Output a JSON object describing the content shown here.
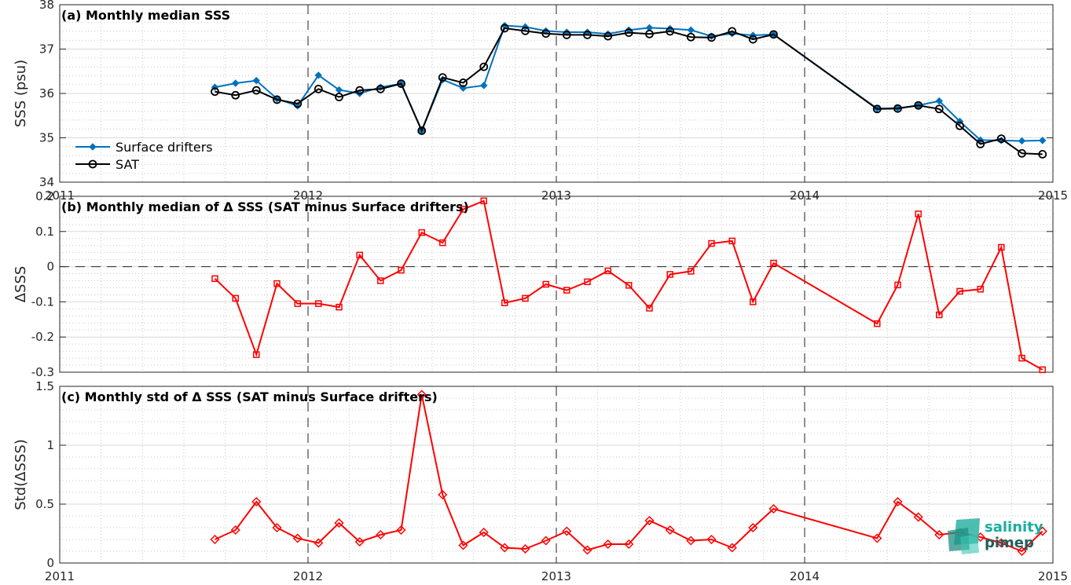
{
  "chart_data": [
    {
      "type": "line",
      "title": "(a) Monthly median SSS",
      "ylabel": "SSS (psu)",
      "ylim": [
        34,
        38
      ],
      "yticks": [
        "34",
        "35",
        "36",
        "37",
        "38"
      ],
      "xlim": [
        2011,
        2015
      ],
      "xticks": [
        "2011",
        "2012",
        "2013",
        "2014",
        "2015"
      ],
      "grid": true,
      "legend_position": "bottom-left",
      "series": [
        {
          "name": "Surface drifters",
          "color": "#0072BD",
          "marker": "diamond-filled",
          "x": [
            2011.625,
            2011.708,
            2011.792,
            2011.875,
            2011.958,
            2012.042,
            2012.125,
            2012.208,
            2012.292,
            2012.375,
            2012.458,
            2012.542,
            2012.625,
            2012.708,
            2012.792,
            2012.875,
            2012.958,
            2013.042,
            2013.125,
            2013.208,
            2013.292,
            2013.375,
            2013.458,
            2013.542,
            2013.625,
            2013.708,
            2013.792,
            2013.875,
            2014.292,
            2014.375,
            2014.458,
            2014.542,
            2014.625,
            2014.708,
            2014.792,
            2014.875,
            2014.958
          ],
          "y": [
            36.14,
            36.23,
            36.29,
            35.88,
            35.72,
            36.41,
            36.08,
            36.0,
            36.14,
            36.22,
            35.16,
            36.31,
            36.12,
            36.18,
            37.53,
            37.5,
            37.41,
            37.38,
            37.38,
            37.34,
            37.43,
            37.48,
            37.46,
            37.43,
            37.29,
            37.35,
            37.31,
            37.33,
            35.66,
            35.67,
            35.73,
            35.83,
            35.37,
            34.95,
            34.94,
            34.93,
            34.94
          ]
        },
        {
          "name": "SAT",
          "color": "#000000",
          "marker": "circle-open",
          "x": [
            2011.625,
            2011.708,
            2011.792,
            2011.875,
            2011.958,
            2012.042,
            2012.125,
            2012.208,
            2012.292,
            2012.375,
            2012.458,
            2012.542,
            2012.625,
            2012.708,
            2012.792,
            2012.875,
            2012.958,
            2013.042,
            2013.125,
            2013.208,
            2013.292,
            2013.375,
            2013.458,
            2013.542,
            2013.625,
            2013.708,
            2013.792,
            2013.875,
            2014.292,
            2014.375,
            2014.458,
            2014.542,
            2014.625,
            2014.708,
            2014.792,
            2014.875,
            2014.958
          ],
          "y": [
            36.04,
            35.96,
            36.07,
            35.86,
            35.77,
            36.1,
            35.92,
            36.07,
            36.1,
            36.22,
            35.16,
            36.36,
            36.24,
            36.6,
            37.47,
            37.41,
            37.35,
            37.32,
            37.32,
            37.29,
            37.37,
            37.34,
            37.4,
            37.27,
            37.26,
            37.4,
            37.22,
            37.33,
            35.65,
            35.66,
            35.73,
            35.65,
            35.27,
            34.86,
            34.98,
            34.65,
            34.63
          ]
        }
      ]
    },
    {
      "type": "line",
      "title": "(b) Monthly median of Δ SSS (SAT minus Surface drifters)",
      "ylabel": "ΔSSS",
      "ylim": [
        -0.3,
        0.2
      ],
      "yticks": [
        "-0.3",
        "-0.2",
        "-0.1",
        "0",
        "0.1",
        "0.2"
      ],
      "xlim": [
        2011,
        2015
      ],
      "grid": true,
      "zero_line": "dashed",
      "series": [
        {
          "color": "#FF0000",
          "marker": "square-open",
          "x": [
            2011.625,
            2011.708,
            2011.792,
            2011.875,
            2011.958,
            2012.042,
            2012.125,
            2012.208,
            2012.292,
            2012.375,
            2012.458,
            2012.542,
            2012.625,
            2012.708,
            2012.792,
            2012.875,
            2012.958,
            2013.042,
            2013.125,
            2013.208,
            2013.292,
            2013.375,
            2013.458,
            2013.542,
            2013.625,
            2013.708,
            2013.792,
            2013.875,
            2014.292,
            2014.375,
            2014.458,
            2014.542,
            2014.625,
            2014.708,
            2014.792,
            2014.875,
            2014.958
          ],
          "y": [
            -0.034,
            -0.09,
            -0.25,
            -0.048,
            -0.105,
            -0.105,
            -0.115,
            0.033,
            -0.04,
            -0.01,
            0.097,
            0.068,
            0.163,
            0.187,
            -0.103,
            -0.09,
            -0.05,
            -0.067,
            -0.043,
            -0.012,
            -0.053,
            -0.118,
            -0.022,
            -0.013,
            0.066,
            0.073,
            -0.1,
            0.01,
            -0.162,
            -0.052,
            0.15,
            -0.137,
            -0.07,
            -0.064,
            0.055,
            -0.26,
            -0.293
          ]
        }
      ]
    },
    {
      "type": "line",
      "title": "(c) Monthly std of Δ SSS (SAT minus Surface drifters)",
      "ylabel": "Std(ΔSSS)",
      "ylim": [
        0,
        1.5
      ],
      "yticks": [
        "0",
        "0.5",
        "1",
        "1.5"
      ],
      "xlim": [
        2011,
        2015
      ],
      "xticks": [
        "2011",
        "2012",
        "2013",
        "2014",
        "2015"
      ],
      "grid": true,
      "series": [
        {
          "color": "#FF0000",
          "marker": "diamond-open",
          "x": [
            2011.625,
            2011.708,
            2011.792,
            2011.875,
            2011.958,
            2012.042,
            2012.125,
            2012.208,
            2012.292,
            2012.375,
            2012.458,
            2012.542,
            2012.625,
            2012.708,
            2012.792,
            2012.875,
            2012.958,
            2013.042,
            2013.125,
            2013.208,
            2013.292,
            2013.375,
            2013.458,
            2013.542,
            2013.625,
            2013.708,
            2013.792,
            2013.875,
            2014.292,
            2014.375,
            2014.458,
            2014.542,
            2014.625,
            2014.708,
            2014.792,
            2014.875,
            2014.958
          ],
          "y": [
            0.2,
            0.28,
            0.52,
            0.3,
            0.21,
            0.17,
            0.34,
            0.18,
            0.24,
            0.28,
            1.43,
            0.58,
            0.15,
            0.26,
            0.13,
            0.12,
            0.19,
            0.27,
            0.11,
            0.16,
            0.16,
            0.36,
            0.28,
            0.19,
            0.2,
            0.13,
            0.3,
            0.46,
            0.21,
            0.52,
            0.39,
            0.24,
            0.26,
            0.22,
            0.17,
            0.1,
            0.27
          ]
        }
      ]
    }
  ],
  "logo": {
    "line1": "salinity",
    "line2": "pimep",
    "color1": "#1AAE9F",
    "color2": "#1F5F5B"
  }
}
